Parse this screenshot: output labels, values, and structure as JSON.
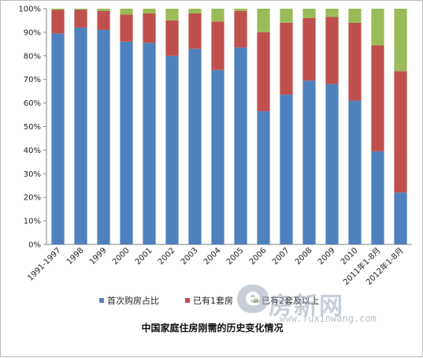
{
  "caption": "中国家庭住房刚需的历史变化情况",
  "watermark": {
    "mark": "e",
    "word": "房新网",
    "url": "www.fuxinwang.com"
  },
  "chart_data": {
    "type": "bar",
    "stacked": true,
    "categories": [
      "1991-1997",
      "1998",
      "1999",
      "2000",
      "2001",
      "2002",
      "2003",
      "2004",
      "2005",
      "2006",
      "2007",
      "2008",
      "2009",
      "2010",
      "2011年1-8月",
      "2012年1-8月"
    ],
    "y_ticks": [
      "0%",
      "10%",
      "20%",
      "30%",
      "40%",
      "50%",
      "60%",
      "70%",
      "80%",
      "90%",
      "100%"
    ],
    "ylim": [
      0,
      100
    ],
    "legend_position": "bottom",
    "grid": false,
    "series": [
      {
        "name": "首次购房占比",
        "color": "#4f81bd",
        "values": [
          89.5,
          92,
          91,
          86,
          85.5,
          80,
          83,
          74,
          83.5,
          56.5,
          63.5,
          69.5,
          68,
          61,
          39.5,
          22
        ]
      },
      {
        "name": "已有1套房",
        "color": "#c0504d",
        "values": [
          10,
          7.5,
          8,
          11.5,
          12.5,
          15,
          15,
          20.5,
          15.5,
          33.5,
          30.5,
          26.5,
          28.5,
          33,
          45,
          51.5
        ]
      },
      {
        "name": "已有2套及以上",
        "color": "#9bbb59",
        "values": [
          0.5,
          0.5,
          1,
          2.5,
          2,
          5,
          2,
          5.5,
          1,
          10,
          6,
          4,
          3.5,
          6,
          15.5,
          26.5
        ]
      }
    ]
  }
}
